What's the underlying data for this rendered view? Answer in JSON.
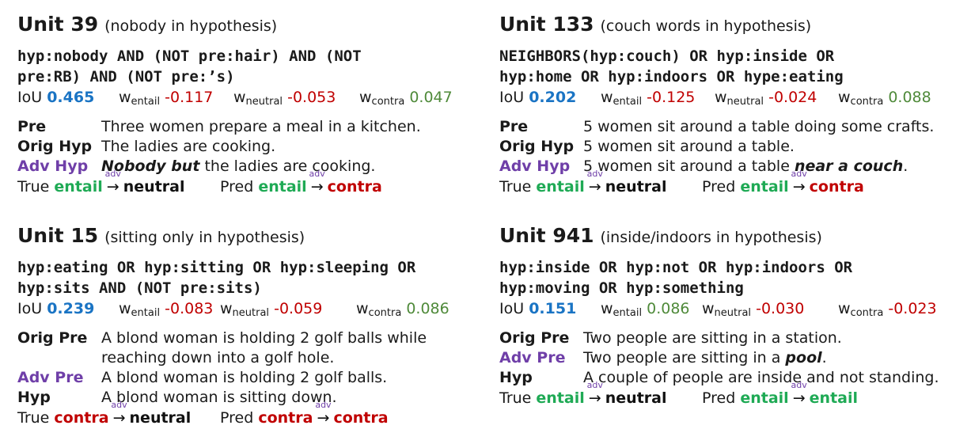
{
  "w_entail_label": "w",
  "w_entail_sub": "entail",
  "w_neutral_sub": "neutral",
  "w_contra_sub": "contra",
  "iou_label": "IoU",
  "true_label": "True",
  "pred_label": "Pred",
  "adv_sup": "adv",
  "panels": [
    {
      "title_unit": "Unit 39",
      "title_desc": "(nobody in hypothesis)",
      "formula": "hyp:nobody AND (NOT pre:hair) AND (NOT\npre:RB) AND (NOT pre:’s)",
      "iou": "0.465",
      "w_entail": "-0.117",
      "w_neutral": "-0.053",
      "w_contra": "0.047",
      "rows": [
        {
          "label": "Pre",
          "text": "Three women prepare a meal in a kitchen."
        },
        {
          "label": "Orig Hyp",
          "text": "The ladies are cooking."
        },
        {
          "label": "Adv Hyp",
          "emph": "Nobody but",
          "text": " the ladies are cooking."
        }
      ],
      "true_from": "entail",
      "true_to": "neutral",
      "pred_from": "entail",
      "pred_to": "contra"
    },
    {
      "title_unit": "Unit 133",
      "title_desc": "(couch words in hypothesis)",
      "formula": "NEIGHBORS(hyp:couch) OR hyp:inside OR\nhyp:home OR hyp:indoors OR hype:eating",
      "iou": "0.202",
      "w_entail": "-0.125",
      "w_neutral": "-0.024",
      "w_contra": "0.088",
      "rows": [
        {
          "label": "Pre",
          "text": "5 women sit around a table doing some crafts."
        },
        {
          "label": "Orig Hyp",
          "text": "5 women sit around a table."
        },
        {
          "label": "Adv Hyp",
          "text": "5 women sit around a table ",
          "emph": "near a couch",
          "tail": "."
        }
      ],
      "true_from": "entail",
      "true_to": "neutral",
      "pred_from": "entail",
      "pred_to": "contra"
    },
    {
      "title_unit": "Unit 15",
      "title_desc": "(sitting only in hypothesis)",
      "formula": "hyp:eating OR hyp:sitting OR hyp:sleeping OR\nhyp:sits AND (NOT pre:sits)",
      "iou": "0.239",
      "w_entail": "-0.083",
      "w_neutral": "-0.059",
      "w_contra": "0.086",
      "rows": [
        {
          "label": "Orig Pre",
          "text": "A blond woman is holding 2 golf balls while",
          "text2": "reaching down into a golf hole."
        },
        {
          "label": "Adv Pre",
          "text": "A blond woman is holding 2 golf balls."
        },
        {
          "label": "Hyp",
          "text": "A blond woman is sitting down."
        }
      ],
      "true_from": "contra",
      "true_to": "neutral",
      "pred_from": "contra",
      "pred_to": "contra"
    },
    {
      "title_unit": "Unit 941",
      "title_desc": "(inside/indoors in hypothesis)",
      "formula": "hyp:inside OR hyp:not OR hyp:indoors OR\nhyp:moving OR hyp:something",
      "iou": "0.151",
      "w_entail": "0.086",
      "w_neutral": "-0.030",
      "w_contra": "-0.023",
      "rows": [
        {
          "label": "Orig Pre",
          "text": "Two people are sitting in a station."
        },
        {
          "label": "Adv Pre",
          "text": "Two people are sitting in a ",
          "emph": "pool",
          "tail": "."
        },
        {
          "label": "Hyp",
          "text": "A couple of people are inside and not standing."
        }
      ],
      "true_from": "entail",
      "true_to": "neutral",
      "pred_from": "entail",
      "pred_to": "entail"
    }
  ]
}
